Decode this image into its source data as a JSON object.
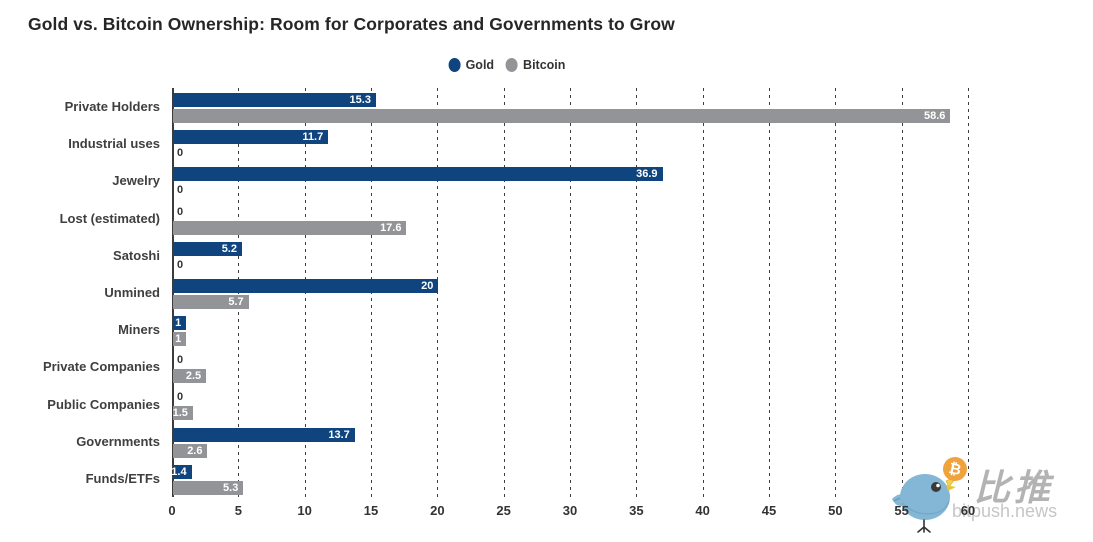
{
  "chart_data": {
    "type": "bar",
    "orientation": "horizontal",
    "title": "Gold vs. Bitcoin Ownership: Room for Corporates and Governments to Grow",
    "categories": [
      "Private Holders",
      "Industrial uses",
      "Jewelry",
      "Lost (estimated)",
      "Satoshi",
      "Unmined",
      "Miners",
      "Private Companies",
      "Public Companies",
      "Governments",
      "Funds/ETFs"
    ],
    "series": [
      {
        "name": "Gold",
        "color": "#0f447e",
        "values": [
          15.3,
          11.7,
          36.9,
          0,
          5.2,
          20,
          1,
          0,
          0,
          13.7,
          1.4
        ],
        "labels": [
          "15.3",
          "11.7",
          "36.9",
          "0",
          "5.2",
          "20",
          "1",
          "0",
          "0",
          "13.7",
          "1.4"
        ]
      },
      {
        "name": "Bitcoin",
        "color": "#929497",
        "values": [
          58.6,
          0,
          0,
          17.6,
          0,
          5.7,
          1,
          2.5,
          1.5,
          2.6,
          5.3
        ],
        "labels": [
          "58.6",
          "0",
          "0",
          "17.6",
          "0",
          "5.7",
          "1",
          "2.5",
          "1.5",
          "2.6",
          "5.3"
        ]
      }
    ],
    "xlim": [
      0,
      60
    ],
    "xticks": [
      0,
      5,
      10,
      15,
      20,
      25,
      30,
      35,
      40,
      45,
      50,
      55,
      60
    ],
    "grid": "vertical-dashed",
    "legend_position": "top-center",
    "value_label_color_inside_bar": "#ffffff",
    "zero_value_label_color": "#333333"
  },
  "watermark": {
    "brand": "比推",
    "domain": "bitpush.news",
    "bitcoin_glyph": "₿"
  }
}
